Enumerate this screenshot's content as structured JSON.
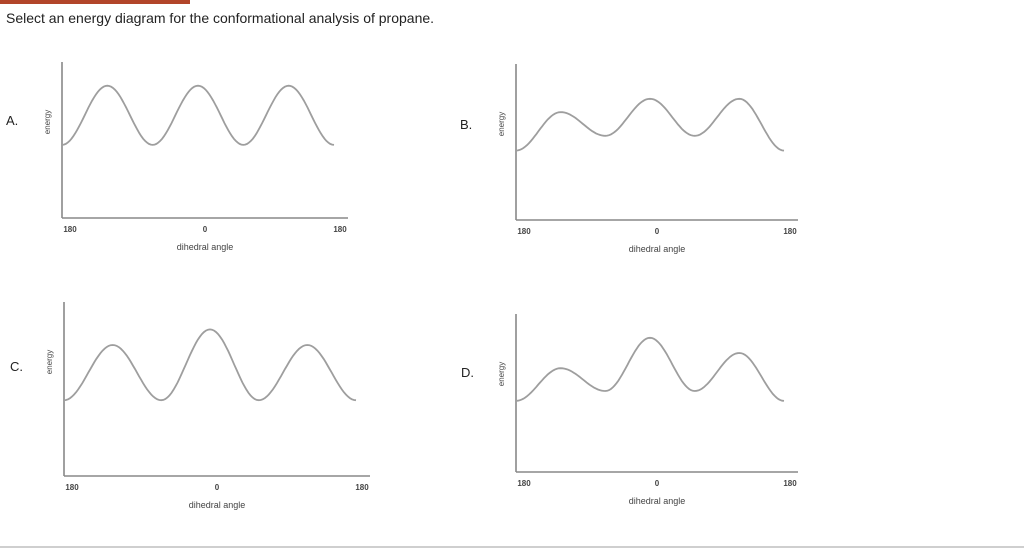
{
  "question": "Select an energy diagram for the conformational analysis of propane.",
  "colors": {
    "curve": "#9e9e9e",
    "axis": "#888888",
    "accent": "#b2452a"
  },
  "options": [
    {
      "label": "A."
    },
    {
      "label": "B."
    },
    {
      "label": "C."
    },
    {
      "label": "D."
    }
  ],
  "chart_data": [
    {
      "type": "line",
      "xlabel": "dihedral angle",
      "ylabel": "energy",
      "xticks": [
        "180",
        "0",
        "180"
      ],
      "xlim": [
        -180,
        180
      ],
      "ylim": [
        0,
        1
      ],
      "series": [
        {
          "x": [
            -180,
            -120,
            -60,
            0,
            60,
            120,
            180
          ],
          "y": [
            0.15,
            0.95,
            0.15,
            0.95,
            0.15,
            0.95,
            0.15
          ]
        }
      ]
    },
    {
      "type": "line",
      "xlabel": "dihedral angle",
      "ylabel": "energy",
      "xticks": [
        "180",
        "0",
        "180"
      ],
      "xlim": [
        -180,
        180
      ],
      "ylim": [
        0,
        1
      ],
      "series": [
        {
          "x": [
            -180,
            -120,
            -60,
            0,
            60,
            120,
            180
          ],
          "y": [
            0.1,
            0.62,
            0.3,
            0.8,
            0.3,
            0.8,
            0.1
          ]
        }
      ]
    },
    {
      "type": "line",
      "xlabel": "dihedral angle",
      "ylabel": "energy",
      "xticks": [
        "180",
        "0",
        "180"
      ],
      "xlim": [
        -180,
        180
      ],
      "ylim": [
        0,
        1
      ],
      "series": [
        {
          "x": [
            -180,
            -120,
            -60,
            0,
            60,
            120,
            180
          ],
          "y": [
            0.15,
            0.75,
            0.15,
            0.92,
            0.15,
            0.75,
            0.15
          ]
        }
      ]
    },
    {
      "type": "line",
      "xlabel": "dihedral angle",
      "ylabel": "energy",
      "xticks": [
        "180",
        "0",
        "180"
      ],
      "xlim": [
        -180,
        180
      ],
      "ylim": [
        0,
        1
      ],
      "series": [
        {
          "x": [
            -180,
            -120,
            -60,
            0,
            60,
            120,
            180
          ],
          "y": [
            0.12,
            0.55,
            0.25,
            0.95,
            0.25,
            0.75,
            0.12
          ]
        }
      ]
    }
  ]
}
